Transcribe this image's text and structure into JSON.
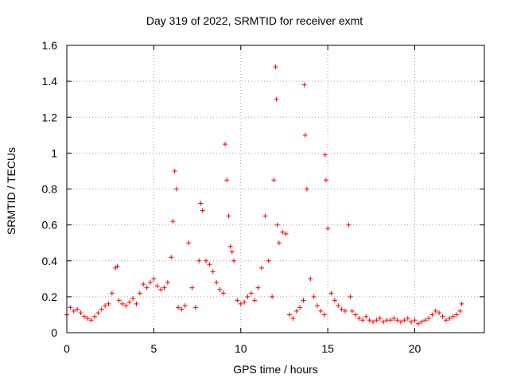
{
  "chart_data": {
    "type": "scatter",
    "title": "Day 319 of 2022, SRMTID for receiver exmt",
    "xlabel": "GPS time / hours",
    "ylabel": "SRMTID / TECUs",
    "xlim": [
      0,
      24
    ],
    "ylim": [
      0,
      1.6
    ],
    "xticks": [
      0,
      5,
      10,
      15,
      20
    ],
    "xtick_labels": [
      "0",
      "5",
      "10",
      "15",
      "20"
    ],
    "yticks": [
      0,
      0.2,
      0.4,
      0.6,
      0.8,
      1.0,
      1.2,
      1.4,
      1.6
    ],
    "ytick_labels": [
      "0",
      "0.2",
      "0.4",
      "0.6",
      "0.8",
      "1",
      "1.2",
      "1.4",
      "1.6"
    ],
    "grid": true,
    "marker": "+",
    "color": "#ff0000",
    "series": [
      {
        "name": "SRMTID",
        "x": [
          0.0,
          0.2,
          0.4,
          0.6,
          0.8,
          1.0,
          1.2,
          1.4,
          1.6,
          1.8,
          2.0,
          2.2,
          2.4,
          2.6,
          2.8,
          2.9,
          3.0,
          3.2,
          3.4,
          3.6,
          3.8,
          4.0,
          4.2,
          4.4,
          4.6,
          4.8,
          5.0,
          5.2,
          5.4,
          5.6,
          5.8,
          6.0,
          6.1,
          6.2,
          6.3,
          6.4,
          6.6,
          6.8,
          7.0,
          7.2,
          7.4,
          7.6,
          7.7,
          7.8,
          8.0,
          8.2,
          8.4,
          8.6,
          8.8,
          9.0,
          9.1,
          9.2,
          9.3,
          9.4,
          9.5,
          9.6,
          9.8,
          10.0,
          10.2,
          10.4,
          10.6,
          10.8,
          11.0,
          11.2,
          11.4,
          11.6,
          11.8,
          11.9,
          12.0,
          12.05,
          12.1,
          12.2,
          12.4,
          12.6,
          12.8,
          13.0,
          13.2,
          13.4,
          13.6,
          13.65,
          13.7,
          13.8,
          14.0,
          14.2,
          14.4,
          14.6,
          14.8,
          14.85,
          14.9,
          15.0,
          15.2,
          15.4,
          15.6,
          15.8,
          16.0,
          16.2,
          16.3,
          16.4,
          16.6,
          16.8,
          17.0,
          17.2,
          17.4,
          17.6,
          17.8,
          18.0,
          18.2,
          18.4,
          18.6,
          18.8,
          19.0,
          19.2,
          19.4,
          19.6,
          19.8,
          20.0,
          20.2,
          20.4,
          20.6,
          20.8,
          21.0,
          21.2,
          21.4,
          21.6,
          21.8,
          22.0,
          22.2,
          22.4,
          22.6,
          22.7
        ],
        "y": [
          0.1,
          0.14,
          0.12,
          0.13,
          0.11,
          0.09,
          0.08,
          0.07,
          0.09,
          0.11,
          0.13,
          0.15,
          0.16,
          0.22,
          0.36,
          0.37,
          0.18,
          0.16,
          0.15,
          0.17,
          0.19,
          0.16,
          0.22,
          0.27,
          0.25,
          0.28,
          0.3,
          0.26,
          0.24,
          0.25,
          0.28,
          0.42,
          0.62,
          0.9,
          0.8,
          0.14,
          0.13,
          0.15,
          0.5,
          0.25,
          0.14,
          0.4,
          0.72,
          0.68,
          0.4,
          0.38,
          0.34,
          0.28,
          0.24,
          0.22,
          1.05,
          0.85,
          0.65,
          0.48,
          0.45,
          0.4,
          0.18,
          0.16,
          0.17,
          0.2,
          0.22,
          0.18,
          0.25,
          0.36,
          0.65,
          0.4,
          0.2,
          0.85,
          1.48,
          1.3,
          0.6,
          0.5,
          0.56,
          0.55,
          0.1,
          0.08,
          0.12,
          0.14,
          0.18,
          1.38,
          1.1,
          0.8,
          0.3,
          0.2,
          0.15,
          0.12,
          0.1,
          0.99,
          0.85,
          0.58,
          0.22,
          0.18,
          0.15,
          0.13,
          0.12,
          0.6,
          0.2,
          0.12,
          0.1,
          0.08,
          0.07,
          0.09,
          0.07,
          0.06,
          0.07,
          0.08,
          0.06,
          0.07,
          0.07,
          0.08,
          0.07,
          0.06,
          0.07,
          0.08,
          0.06,
          0.07,
          0.05,
          0.06,
          0.07,
          0.08,
          0.1,
          0.12,
          0.11,
          0.09,
          0.07,
          0.08,
          0.09,
          0.1,
          0.12,
          0.16
        ]
      }
    ]
  }
}
